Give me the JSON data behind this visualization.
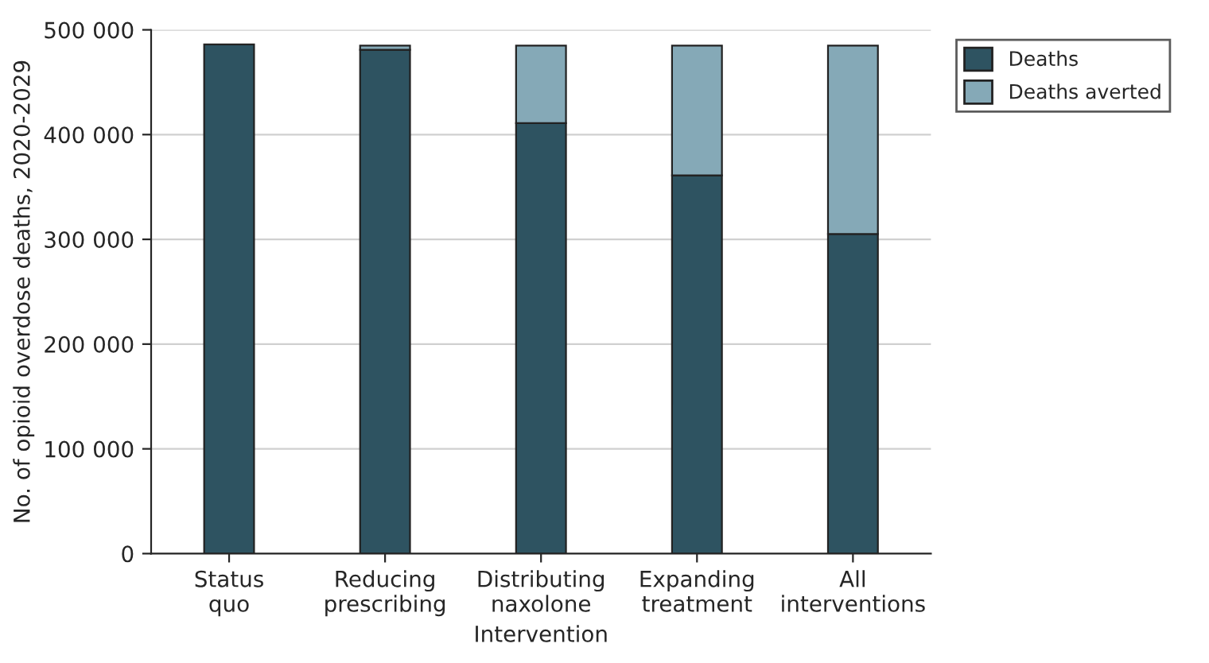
{
  "chart_data": {
    "type": "bar",
    "stacked": true,
    "xlabel": "Intervention",
    "ylabel": "No. of opioid overdose deaths, 2020-2029",
    "categories": [
      "Status\nquo",
      "Reducing\nprescribing",
      "Distributing\nnaxolone",
      "Expanding\ntreatment",
      "All\ninterventions"
    ],
    "series": [
      {
        "name": "Deaths",
        "color": "#2e5361",
        "values": [
          486000,
          481000,
          411000,
          361000,
          305000
        ]
      },
      {
        "name": "Deaths averted",
        "color": "#85a9b7",
        "values": [
          null,
          4000,
          74000,
          124000,
          180000
        ]
      }
    ],
    "ylim": [
      0,
      500000
    ],
    "yticks": [
      {
        "value": 0,
        "label": "0"
      },
      {
        "value": 100000,
        "label": "100 000"
      },
      {
        "value": 200000,
        "label": "200 000"
      },
      {
        "value": 300000,
        "label": "300 000"
      },
      {
        "value": 400000,
        "label": "400 000"
      },
      {
        "value": 500000,
        "label": "500 000"
      }
    ],
    "grid": "y",
    "legend": "top right"
  }
}
